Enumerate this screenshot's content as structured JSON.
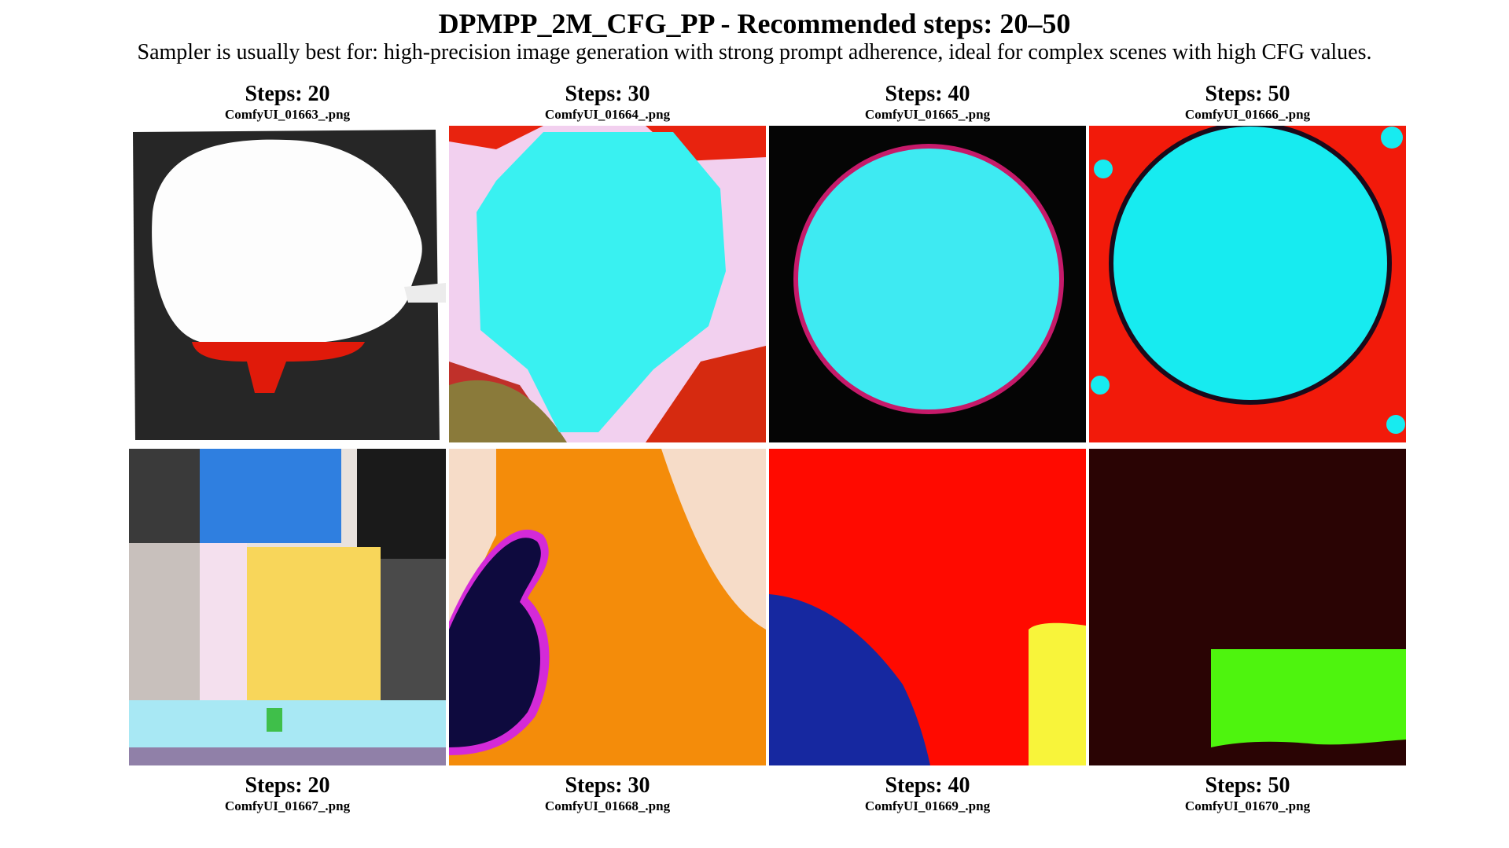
{
  "header": {
    "title": "DPMPP_2M_CFG_PP - Recommended steps: 20–50",
    "subtitle": "Sampler is usually best for: high-precision image generation with strong prompt adherence, ideal for complex scenes with high CFG values."
  },
  "grid": {
    "top_row": [
      {
        "steps": "Steps: 20",
        "filename": "ComfyUI_01663_.png"
      },
      {
        "steps": "Steps: 30",
        "filename": "ComfyUI_01664_.png"
      },
      {
        "steps": "Steps: 40",
        "filename": "ComfyUI_01665_.png"
      },
      {
        "steps": "Steps: 50",
        "filename": "ComfyUI_01666_.png"
      }
    ],
    "bottom_row": [
      {
        "steps": "Steps: 20",
        "filename": "ComfyUI_01667_.png"
      },
      {
        "steps": "Steps: 30",
        "filename": "ComfyUI_01668_.png"
      },
      {
        "steps": "Steps: 40",
        "filename": "ComfyUI_01669_.png"
      },
      {
        "steps": "Steps: 50",
        "filename": "ComfyUI_01670_.png"
      }
    ]
  },
  "colors": {
    "background": "#ffffff",
    "text": "#000000",
    "cyan": "#33f0f0",
    "red": "#ff1a00",
    "black": "#0a0a0a"
  }
}
